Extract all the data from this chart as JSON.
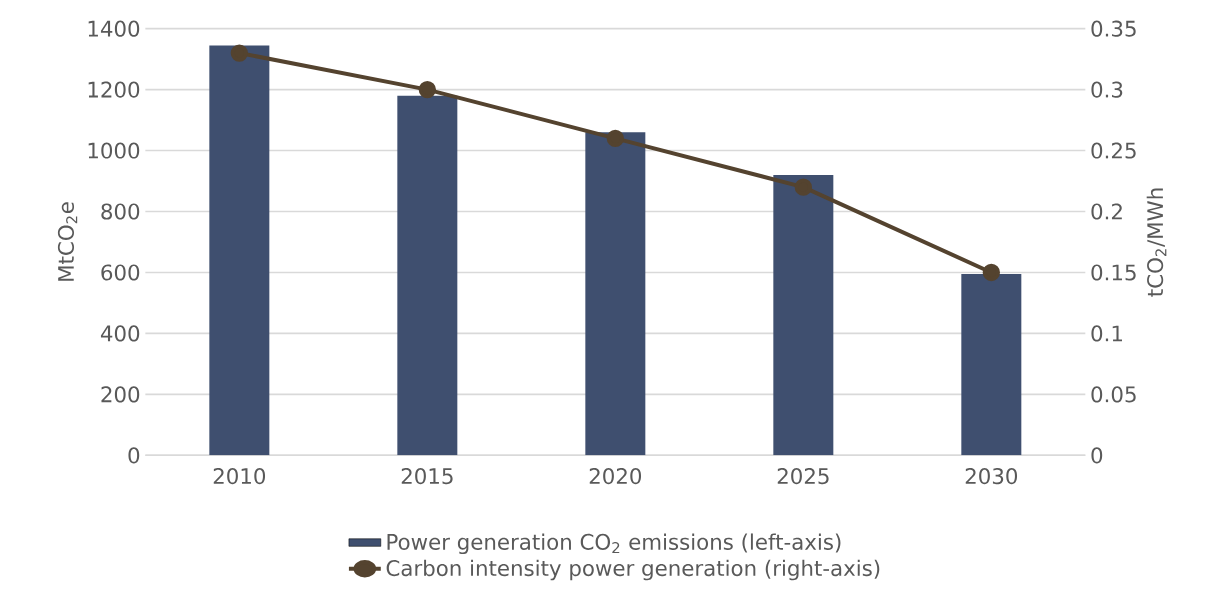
{
  "chart_data": {
    "type": "bar",
    "categories": [
      "2010",
      "2015",
      "2020",
      "2025",
      "2030"
    ],
    "series": [
      {
        "name": "Power generation CO$_{2}$ emissions (left-axis)",
        "axis": "y",
        "color": "#3f4f6f",
        "values": [
          1345,
          1180,
          1060,
          920,
          595
        ]
      },
      {
        "name": "Carbon intensity power generation (right-axis)",
        "type": "line",
        "axis": "y2",
        "color": "#54432f",
        "marker": "circle",
        "values": [
          0.33,
          0.3,
          0.26,
          0.22,
          0.15
        ]
      }
    ],
    "ylabel": "MtCO$_{2}$e",
    "y2label": "tCO$_{2}$/MWh",
    "ylim": [
      0,
      1400
    ],
    "yticks": [
      0,
      200,
      400,
      600,
      800,
      1000,
      1200,
      1400
    ],
    "y2lim": [
      0,
      0.35
    ],
    "y2ticks": [
      0,
      0.05,
      0.1,
      0.15,
      0.2,
      0.25,
      0.3,
      0.35
    ],
    "grid": "y",
    "legend": "bottom"
  }
}
